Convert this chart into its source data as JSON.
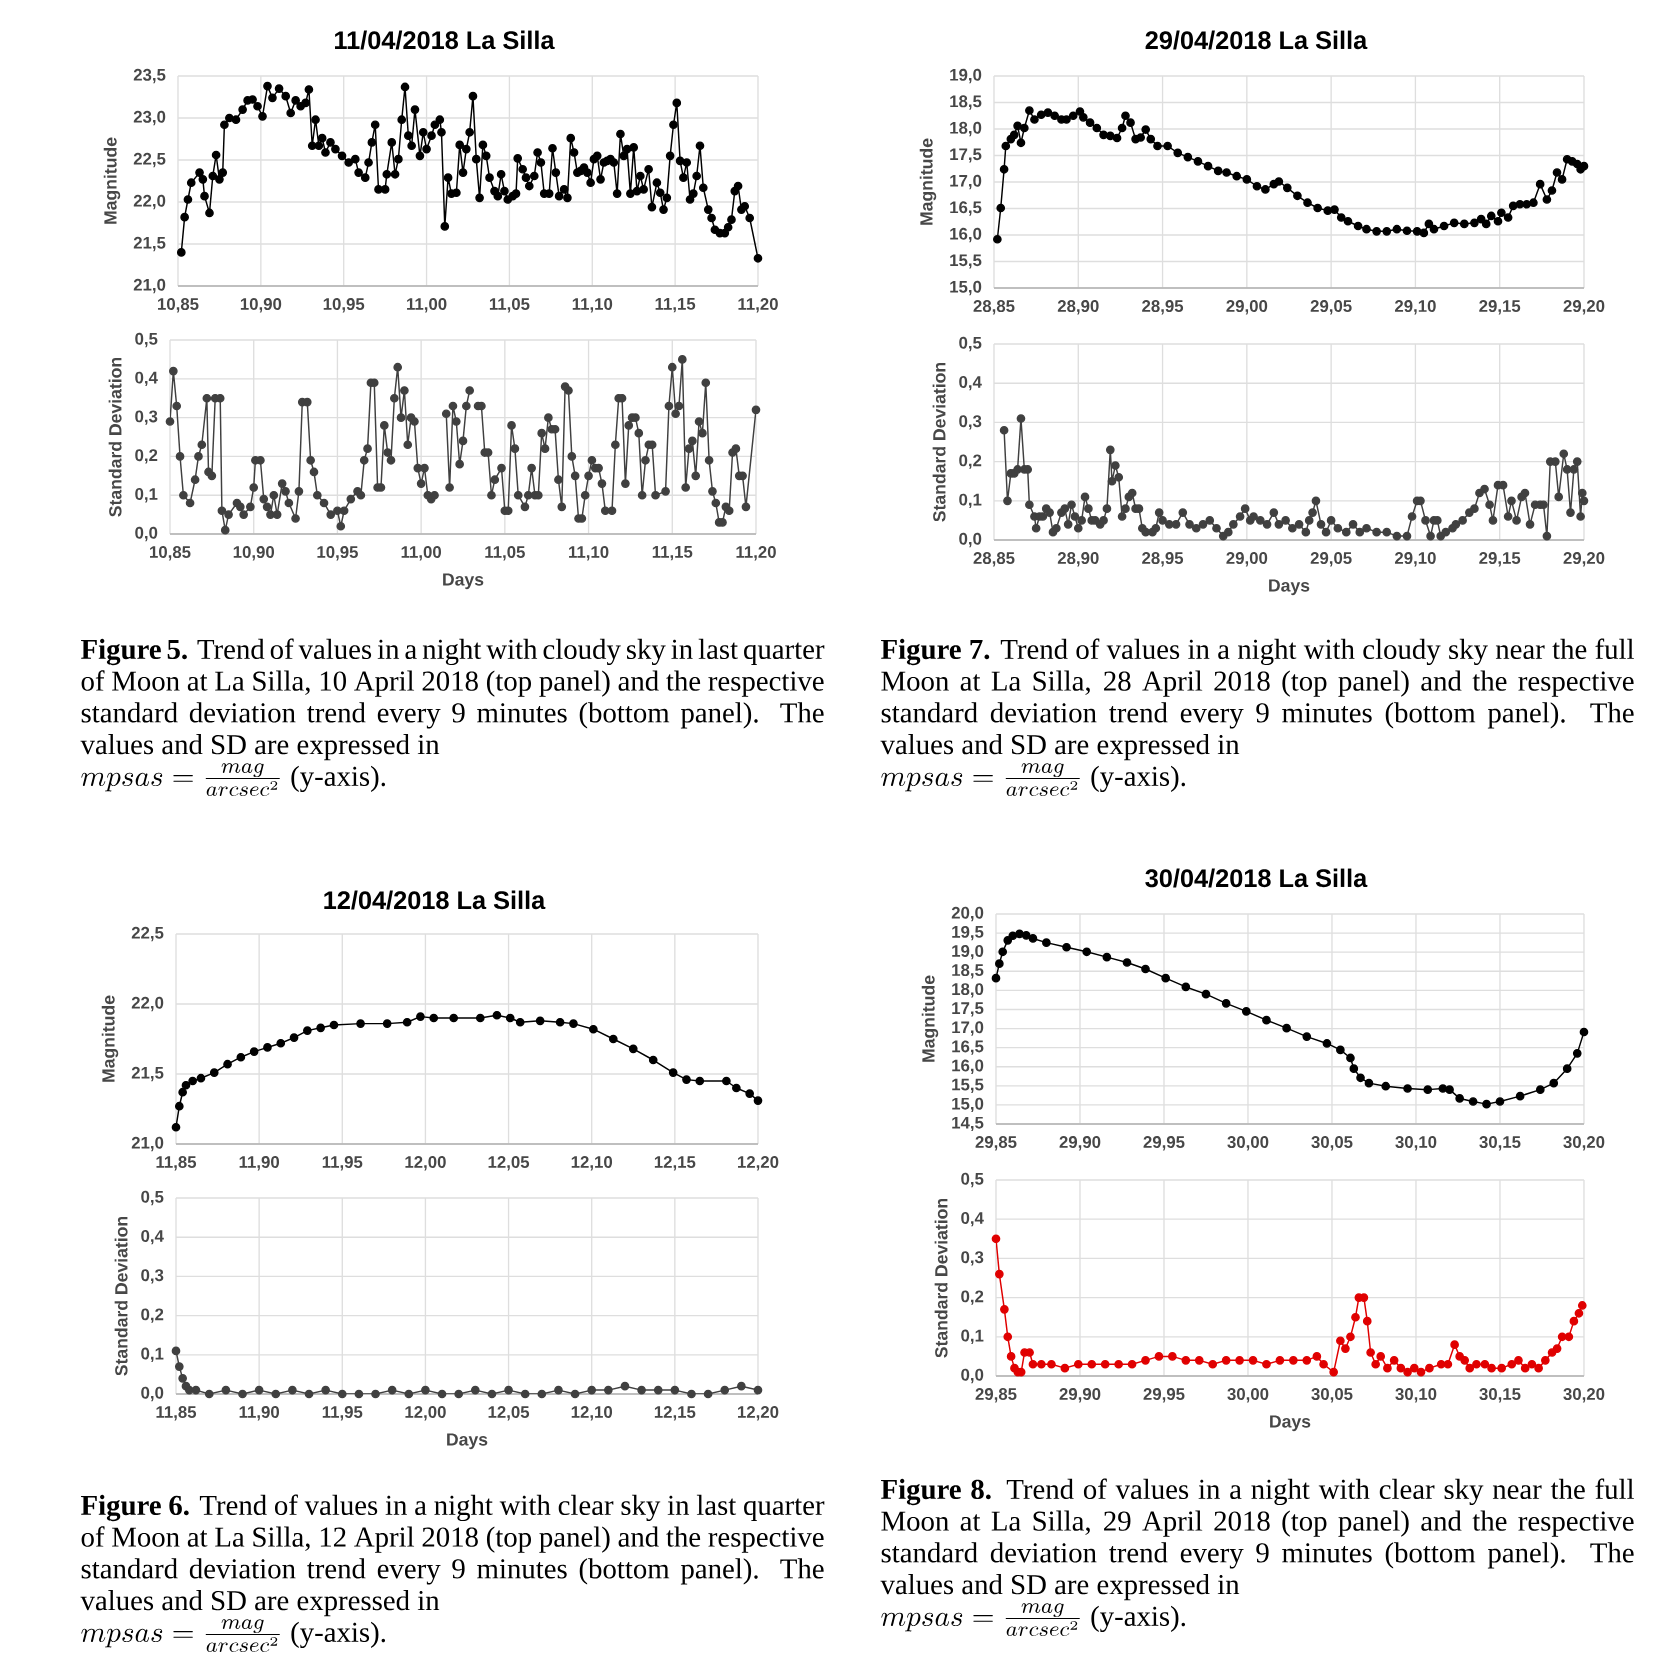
{
  "chart_data": [
    {
      "type": "line",
      "title": "11/04/2018 La Silla",
      "ylabel": "Magnitude",
      "color": "#000000",
      "marker": "circle",
      "grid": true,
      "xlim": [
        10.85,
        11.2
      ],
      "xticks": [
        {
          "value": 10.85,
          "label": "10,85"
        },
        {
          "value": 10.9,
          "label": "10,90"
        },
        {
          "value": 10.95,
          "label": "10,95"
        },
        {
          "value": 11.0,
          "label": "11,00"
        },
        {
          "value": 11.05,
          "label": "11,05"
        },
        {
          "value": 11.1,
          "label": "11,10"
        },
        {
          "value": 11.15,
          "label": "11,15"
        },
        {
          "value": 11.2,
          "label": "11,20"
        }
      ],
      "ylim": [
        21,
        23.5
      ],
      "yticks": [
        {
          "value": 21.0,
          "label": "21,0"
        },
        {
          "value": 21.5,
          "label": "21,5"
        },
        {
          "value": 22.0,
          "label": "22,0"
        },
        {
          "value": 22.5,
          "label": "22,5"
        },
        {
          "value": 23.0,
          "label": "23,0"
        },
        {
          "value": 23.5,
          "label": "23,5"
        }
      ],
      "x": [
        10.852,
        10.854,
        10.856,
        10.858,
        10.863,
        10.865,
        10.866,
        10.869,
        10.871,
        10.873,
        10.875,
        10.877,
        10.878,
        10.881,
        10.885,
        10.889,
        10.892,
        10.895,
        10.898,
        10.901,
        10.904,
        10.907,
        10.911,
        10.915,
        10.918,
        10.921,
        10.924,
        10.927,
        10.929,
        10.931,
        10.933,
        10.935,
        10.937,
        10.939,
        10.942,
        10.945,
        10.949,
        10.953,
        10.957,
        10.959,
        10.963,
        10.965,
        10.967,
        10.969,
        10.971,
        10.975,
        10.976,
        10.979,
        10.981,
        10.983,
        10.985,
        10.987,
        10.989,
        10.991,
        10.993,
        10.996,
        10.998,
        11.0,
        11.003,
        11.005,
        11.008,
        11.009,
        11.011,
        11.013,
        11.015,
        11.018,
        11.02,
        11.022,
        11.024,
        11.026,
        11.028,
        11.03,
        11.032,
        11.034,
        11.036,
        11.038,
        11.041,
        11.043,
        11.045,
        11.047,
        11.049,
        11.052,
        11.054,
        11.055,
        11.058,
        11.06,
        11.062,
        11.065,
        11.067,
        11.069,
        11.071,
        11.074,
        11.076,
        11.078,
        11.08,
        11.083,
        11.085,
        11.087,
        11.089,
        11.091,
        11.093,
        11.095,
        11.097,
        11.099,
        11.101,
        11.103,
        11.105,
        11.107,
        11.109,
        11.111,
        11.113,
        11.115,
        11.117,
        11.119,
        11.121,
        11.123,
        11.125,
        11.127,
        11.129,
        11.131,
        11.134,
        11.136,
        11.139,
        11.141,
        11.143,
        11.145,
        11.147,
        11.149,
        11.151,
        11.153,
        11.155,
        11.157,
        11.159,
        11.161,
        11.163,
        11.165,
        11.167,
        11.17,
        11.172,
        11.174,
        11.177,
        11.18,
        11.182,
        11.184,
        11.186,
        11.188,
        11.19,
        11.192,
        11.195,
        11.2
      ],
      "values": [
        21.4,
        21.82,
        22.03,
        22.23,
        22.35,
        22.27,
        22.07,
        21.87,
        22.31,
        22.56,
        22.27,
        22.35,
        22.92,
        23.0,
        22.98,
        23.1,
        23.21,
        23.22,
        23.14,
        23.02,
        23.38,
        23.24,
        23.35,
        23.26,
        23.06,
        23.21,
        23.14,
        23.18,
        23.34,
        22.67,
        22.98,
        22.67,
        22.76,
        22.59,
        22.71,
        22.63,
        22.55,
        22.47,
        22.51,
        22.35,
        22.29,
        22.47,
        22.71,
        22.92,
        22.15,
        22.15,
        22.33,
        22.71,
        22.33,
        22.51,
        22.98,
        23.37,
        22.79,
        22.67,
        23.1,
        22.55,
        22.83,
        22.63,
        22.79,
        22.92,
        22.98,
        22.83,
        21.71,
        22.29,
        22.1,
        22.11,
        22.68,
        22.35,
        22.63,
        22.83,
        23.26,
        22.51,
        22.05,
        22.68,
        22.55,
        22.29,
        22.13,
        22.07,
        22.33,
        22.13,
        22.03,
        22.07,
        22.1,
        22.52,
        22.39,
        22.29,
        22.19,
        22.31,
        22.59,
        22.47,
        22.1,
        22.1,
        22.64,
        22.35,
        22.07,
        22.15,
        22.05,
        22.76,
        22.59,
        22.35,
        22.37,
        22.41,
        22.35,
        22.23,
        22.51,
        22.55,
        22.27,
        22.47,
        22.49,
        22.51,
        22.47,
        22.1,
        22.81,
        22.55,
        22.63,
        22.1,
        22.65,
        22.13,
        22.31,
        22.15,
        22.39,
        21.94,
        22.23,
        22.11,
        21.91,
        22.05,
        22.55,
        22.92,
        23.18,
        22.49,
        22.29,
        22.47,
        22.03,
        22.1,
        22.31,
        22.67,
        22.17,
        21.91,
        21.81,
        21.67,
        21.63,
        21.63,
        21.7,
        21.79,
        22.13,
        22.19,
        21.91,
        21.95,
        21.81,
        21.33
      ]
    },
    {
      "type": "line",
      "xlabel": "Days",
      "ylabel": "Standard Deviation",
      "color": "#404040",
      "marker": "circle",
      "grid": true,
      "xlim": [
        10.85,
        11.2
      ],
      "xticks": [
        {
          "value": 10.85,
          "label": "10,85"
        },
        {
          "value": 10.9,
          "label": "10,90"
        },
        {
          "value": 10.95,
          "label": "10,95"
        },
        {
          "value": 11.0,
          "label": "11,00"
        },
        {
          "value": 11.05,
          "label": "11,05"
        },
        {
          "value": 11.1,
          "label": "11,10"
        },
        {
          "value": 11.15,
          "label": "11,15"
        },
        {
          "value": 11.2,
          "label": "11,20"
        }
      ],
      "ylim": [
        0,
        0.5
      ],
      "yticks": [
        {
          "value": 0.0,
          "label": "0,0"
        },
        {
          "value": 0.1,
          "label": "0,1"
        },
        {
          "value": 0.2,
          "label": "0,2"
        },
        {
          "value": 0.3,
          "label": "0,3"
        },
        {
          "value": 0.4,
          "label": "0,4"
        },
        {
          "value": 0.5,
          "label": "0,5"
        }
      ],
      "x": [
        10.85,
        10.852,
        10.854,
        10.856,
        10.858,
        10.862,
        10.865,
        10.867,
        10.869,
        10.872,
        10.873,
        10.875,
        10.877,
        10.88,
        10.881,
        10.883,
        10.885,
        10.89,
        10.892,
        10.894,
        10.898,
        10.9,
        10.901,
        10.904,
        10.906,
        10.908,
        10.91,
        10.912,
        10.914,
        10.917,
        10.919,
        10.921,
        10.925,
        10.927,
        10.929,
        10.932,
        10.934,
        10.936,
        10.938,
        10.942,
        10.946,
        10.95,
        10.952,
        10.954,
        10.958,
        10.962,
        10.964,
        10.966,
        10.968,
        10.97,
        10.972,
        10.974,
        10.976,
        10.978,
        10.98,
        10.982,
        10.984,
        10.986,
        10.988,
        10.99,
        10.992,
        10.994,
        10.996,
        10.998,
        11.0,
        11.002,
        11.004,
        11.006,
        11.008,
        11.011,
        11.015,
        11.017,
        11.019,
        11.021,
        11.023,
        11.025,
        11.027,
        11.029,
        11.031,
        11.034,
        11.036,
        11.038,
        11.04,
        11.042,
        11.044,
        11.048,
        11.05,
        11.052,
        11.054,
        11.056,
        11.058,
        11.062,
        11.064,
        11.066,
        11.068,
        11.07,
        11.072,
        11.074,
        11.076,
        11.078,
        11.08,
        11.082,
        11.084,
        11.086,
        11.088,
        11.09,
        11.092,
        11.094,
        11.096,
        11.098,
        11.1,
        11.102,
        11.104,
        11.106,
        11.108,
        11.11,
        11.114,
        11.116,
        11.118,
        11.12,
        11.122,
        11.124,
        11.126,
        11.128,
        11.13,
        11.132,
        11.134,
        11.136,
        11.138,
        11.14,
        11.146,
        11.148,
        11.15,
        11.152,
        11.154,
        11.156,
        11.158,
        11.16,
        11.162,
        11.164,
        11.166,
        11.168,
        11.17,
        11.172,
        11.174,
        11.176,
        11.178,
        11.18,
        11.182,
        11.184,
        11.186,
        11.188,
        11.19,
        11.192,
        11.194,
        11.2
      ],
      "values": [
        0.29,
        0.42,
        0.33,
        0.2,
        0.1,
        0.08,
        0.14,
        0.2,
        0.23,
        0.35,
        0.16,
        0.15,
        0.35,
        0.35,
        0.06,
        0.01,
        0.05,
        0.08,
        0.07,
        0.05,
        0.07,
        0.12,
        0.19,
        0.19,
        0.09,
        0.07,
        0.05,
        0.1,
        0.05,
        0.13,
        0.11,
        0.08,
        0.04,
        0.11,
        0.34,
        0.34,
        0.19,
        0.16,
        0.1,
        0.08,
        0.05,
        0.06,
        0.02,
        0.06,
        0.09,
        0.11,
        0.1,
        0.19,
        0.22,
        0.39,
        0.39,
        0.12,
        0.12,
        0.28,
        0.21,
        0.19,
        0.35,
        0.43,
        0.3,
        0.37,
        0.23,
        0.3,
        0.29,
        0.17,
        0.13,
        0.17,
        0.1,
        0.09,
        0.1,
        null,
        0.31,
        0.12,
        0.33,
        0.29,
        0.18,
        0.24,
        0.33,
        0.37,
        null,
        0.33,
        0.33,
        0.21,
        0.21,
        0.1,
        0.14,
        0.17,
        0.06,
        0.06,
        0.28,
        0.22,
        0.1,
        0.07,
        0.1,
        0.17,
        0.1,
        0.1,
        0.26,
        0.22,
        0.3,
        0.27,
        0.27,
        0.14,
        0.07,
        0.38,
        0.37,
        0.2,
        0.15,
        0.04,
        0.04,
        0.1,
        0.15,
        0.19,
        0.17,
        0.17,
        0.13,
        0.06,
        0.06,
        0.23,
        0.35,
        0.35,
        0.13,
        0.28,
        0.3,
        0.3,
        0.26,
        0.1,
        0.19,
        0.23,
        0.23,
        0.1,
        0.11,
        0.33,
        0.43,
        0.31,
        0.33,
        0.45,
        0.12,
        0.22,
        0.24,
        0.15,
        0.29,
        0.26,
        0.39,
        0.19,
        0.11,
        0.08,
        0.03,
        0.03,
        0.07,
        0.06,
        0.21,
        0.22,
        0.15,
        0.15,
        0.07,
        0.32
      ],
      "annotations": [
        "**Figure 5.** Trend of values in a night with cloudy sky in last quarter of Moon at La Silla, 10 April 2018 (top panel) and the respective standard deviation trend every 9 minutes (bottom panel). The values and SD are expressed in",
        "mpsas = \\frac{mag}{arcsec^2}",
        "(y-axis)."
      ]
    },
    {
      "type": "line",
      "title": "12/04/2018 La Silla",
      "ylabel": "Magnitude",
      "color": "#000000",
      "marker": "circle",
      "grid": true,
      "xlim": [
        11.85,
        12.2
      ],
      "xticks": [
        {
          "value": 11.85,
          "label": "11,85"
        },
        {
          "value": 11.9,
          "label": "11,90"
        },
        {
          "value": 11.95,
          "label": "11,95"
        },
        {
          "value": 12.0,
          "label": "12,00"
        },
        {
          "value": 12.05,
          "label": "12,05"
        },
        {
          "value": 12.1,
          "label": "12,10"
        },
        {
          "value": 12.15,
          "label": "12,15"
        },
        {
          "value": 12.2,
          "label": "12,20"
        }
      ],
      "ylim": [
        21,
        22.5
      ],
      "yticks": [
        {
          "value": 21.0,
          "label": "21,0"
        },
        {
          "value": 21.5,
          "label": "21,5"
        },
        {
          "value": 22.0,
          "label": "22,0"
        },
        {
          "value": 22.5,
          "label": "22,5"
        }
      ],
      "x": [
        11.85,
        11.852,
        11.854,
        11.856,
        11.86,
        11.865,
        11.873,
        11.881,
        11.889,
        11.897,
        11.905,
        11.913,
        11.921,
        11.929,
        11.937,
        11.945,
        11.961,
        11.977,
        11.989,
        11.997,
        12.005,
        12.017,
        12.033,
        12.043,
        12.051,
        12.057,
        12.069,
        12.081,
        12.089,
        12.101,
        12.113,
        12.125,
        12.137,
        12.149,
        12.157,
        12.165,
        12.181,
        12.187,
        12.195,
        12.2
      ],
      "values": [
        21.12,
        21.27,
        21.37,
        21.42,
        21.45,
        21.47,
        21.51,
        21.57,
        21.62,
        21.66,
        21.69,
        21.72,
        21.76,
        21.81,
        21.83,
        21.85,
        21.86,
        21.86,
        21.87,
        21.91,
        21.9,
        21.9,
        21.9,
        21.92,
        21.9,
        21.87,
        21.88,
        21.87,
        21.86,
        21.82,
        21.75,
        21.68,
        21.6,
        21.51,
        21.46,
        21.45,
        21.45,
        21.4,
        21.36,
        21.31
      ]
    },
    {
      "type": "line",
      "xlabel": "Days",
      "ylabel": "Standard Deviation",
      "color": "#404040",
      "marker": "circle",
      "grid": true,
      "xlim": [
        11.85,
        12.2
      ],
      "xticks": [
        {
          "value": 11.85,
          "label": "11,85"
        },
        {
          "value": 11.9,
          "label": "11,90"
        },
        {
          "value": 11.95,
          "label": "11,95"
        },
        {
          "value": 12.0,
          "label": "12,00"
        },
        {
          "value": 12.05,
          "label": "12,05"
        },
        {
          "value": 12.1,
          "label": "12,10"
        },
        {
          "value": 12.15,
          "label": "12,15"
        },
        {
          "value": 12.2,
          "label": "12,20"
        }
      ],
      "ylim": [
        0,
        0.5
      ],
      "yticks": [
        {
          "value": 0.0,
          "label": "0,0"
        },
        {
          "value": 0.1,
          "label": "0,1"
        },
        {
          "value": 0.2,
          "label": "0,2"
        },
        {
          "value": 0.3,
          "label": "0,3"
        },
        {
          "value": 0.4,
          "label": "0,4"
        },
        {
          "value": 0.5,
          "label": "0,5"
        }
      ],
      "x": [
        11.85,
        11.852,
        11.854,
        11.856,
        11.858,
        11.862,
        11.87,
        11.88,
        11.89,
        11.9,
        11.91,
        11.92,
        11.93,
        11.94,
        11.95,
        11.96,
        11.97,
        11.98,
        11.99,
        12.0,
        12.01,
        12.02,
        12.03,
        12.04,
        12.05,
        12.06,
        12.07,
        12.08,
        12.09,
        12.1,
        12.11,
        12.12,
        12.13,
        12.14,
        12.15,
        12.16,
        12.17,
        12.18,
        12.19,
        12.2
      ],
      "values": [
        0.11,
        0.07,
        0.04,
        0.02,
        0.01,
        0.01,
        0.0,
        0.01,
        0.0,
        0.01,
        0.0,
        0.01,
        0.0,
        0.01,
        0.0,
        0.0,
        0.0,
        0.01,
        0.0,
        0.01,
        0.0,
        0.0,
        0.01,
        0.0,
        0.01,
        0.0,
        0.0,
        0.01,
        0.0,
        0.01,
        0.01,
        0.02,
        0.01,
        0.01,
        0.01,
        0.0,
        0.0,
        0.01,
        0.02,
        0.01
      ],
      "annotations": [
        "**Figure 6.** Trend of values in a night with clear sky in last quarter of Moon at La Silla, 12 April 2018 (top panel) and the respective standard deviation trend every 9 minutes (bottom panel). The values and SD are expressed in",
        "mpsas = \\frac{mag}{arcsec^2}",
        "(y-axis)."
      ]
    },
    {
      "type": "line",
      "title": "29/04/2018 La Silla",
      "ylabel": "Magnitude",
      "color": "#000000",
      "marker": "circle",
      "grid": true,
      "xlim": [
        28.85,
        29.2
      ],
      "xticks": [
        {
          "value": 28.85,
          "label": "28,85"
        },
        {
          "value": 28.9,
          "label": "28,90"
        },
        {
          "value": 28.95,
          "label": "28,95"
        },
        {
          "value": 29.0,
          "label": "29,00"
        },
        {
          "value": 29.05,
          "label": "29,05"
        },
        {
          "value": 29.1,
          "label": "29,10"
        },
        {
          "value": 29.15,
          "label": "29,15"
        },
        {
          "value": 29.2,
          "label": "29,20"
        }
      ],
      "ylim": [
        15,
        19
      ],
      "yticks": [
        {
          "value": 15.0,
          "label": "15,0"
        },
        {
          "value": 15.5,
          "label": "15,5"
        },
        {
          "value": 16.0,
          "label": "16,0"
        },
        {
          "value": 16.5,
          "label": "16,5"
        },
        {
          "value": 17.0,
          "label": "17,0"
        },
        {
          "value": 17.5,
          "label": "17,5"
        },
        {
          "value": 18.0,
          "label": "18,0"
        },
        {
          "value": 18.5,
          "label": "18,5"
        },
        {
          "value": 19.0,
          "label": "19,0"
        }
      ],
      "x": [
        28.852,
        28.854,
        28.856,
        28.857,
        28.86,
        28.862,
        28.864,
        28.866,
        28.868,
        28.871,
        28.874,
        28.878,
        28.882,
        28.886,
        28.89,
        28.893,
        28.897,
        28.901,
        28.903,
        28.907,
        28.911,
        28.915,
        28.919,
        28.923,
        28.926,
        28.928,
        28.931,
        28.934,
        28.937,
        28.94,
        28.943,
        28.947,
        28.953,
        28.959,
        28.965,
        28.971,
        28.977,
        28.983,
        28.988,
        28.994,
        29.0,
        29.006,
        29.011,
        29.016,
        29.019,
        29.024,
        29.03,
        29.036,
        29.042,
        29.048,
        29.052,
        29.056,
        29.06,
        29.066,
        29.071,
        29.077,
        29.083,
        29.089,
        29.095,
        29.101,
        29.105,
        29.108,
        29.111,
        29.117,
        29.123,
        29.129,
        29.135,
        29.139,
        29.142,
        29.145,
        29.149,
        29.151,
        29.155,
        29.158,
        29.162,
        29.166,
        29.17,
        29.174,
        29.178,
        29.181,
        29.184,
        29.187,
        29.19,
        29.193,
        29.196,
        29.198,
        29.2
      ],
      "values": [
        15.92,
        16.51,
        17.24,
        17.68,
        17.81,
        17.89,
        18.06,
        17.74,
        18.02,
        18.35,
        18.18,
        18.27,
        18.31,
        18.25,
        18.18,
        18.18,
        18.25,
        18.33,
        18.22,
        18.12,
        18.02,
        17.89,
        17.87,
        17.83,
        18.02,
        18.25,
        18.12,
        17.81,
        17.84,
        17.99,
        17.81,
        17.68,
        17.68,
        17.55,
        17.47,
        17.39,
        17.3,
        17.21,
        17.18,
        17.11,
        17.05,
        16.92,
        16.86,
        16.96,
        17.01,
        16.89,
        16.74,
        16.61,
        16.51,
        16.46,
        16.48,
        16.33,
        16.26,
        16.17,
        16.11,
        16.07,
        16.07,
        16.11,
        16.08,
        16.07,
        16.04,
        16.21,
        16.11,
        16.17,
        16.23,
        16.21,
        16.23,
        16.3,
        16.21,
        16.36,
        16.26,
        16.42,
        16.33,
        16.55,
        16.58,
        16.58,
        16.61,
        16.96,
        16.67,
        16.84,
        17.18,
        17.05,
        17.43,
        17.39,
        17.34,
        17.24,
        17.3
      ]
    },
    {
      "type": "line",
      "xlabel": "Days",
      "ylabel": "Standard Deviation",
      "color": "#404040",
      "marker": "circle",
      "grid": true,
      "xlim": [
        28.85,
        29.2
      ],
      "xticks": [
        {
          "value": 28.85,
          "label": "28,85"
        },
        {
          "value": 28.9,
          "label": "28,90"
        },
        {
          "value": 28.95,
          "label": "28,95"
        },
        {
          "value": 29.0,
          "label": "29,00"
        },
        {
          "value": 29.05,
          "label": "29,05"
        },
        {
          "value": 29.1,
          "label": "29,10"
        },
        {
          "value": 29.15,
          "label": "29,15"
        },
        {
          "value": 29.2,
          "label": "29,20"
        }
      ],
      "ylim": [
        0,
        0.5
      ],
      "yticks": [
        {
          "value": 0.0,
          "label": "0,0"
        },
        {
          "value": 0.1,
          "label": "0,1"
        },
        {
          "value": 0.2,
          "label": "0,2"
        },
        {
          "value": 0.3,
          "label": "0,3"
        },
        {
          "value": 0.4,
          "label": "0,4"
        },
        {
          "value": 0.5,
          "label": "0,5"
        }
      ],
      "x": [
        28.856,
        28.858,
        28.86,
        28.862,
        28.864,
        28.866,
        28.868,
        28.87,
        28.871,
        28.874,
        28.875,
        28.877,
        28.879,
        28.881,
        28.883,
        28.885,
        28.887,
        28.89,
        28.892,
        28.894,
        28.896,
        28.898,
        28.9,
        28.902,
        28.904,
        28.906,
        28.908,
        28.91,
        28.913,
        28.915,
        28.917,
        28.919,
        28.92,
        28.922,
        28.924,
        28.926,
        28.928,
        28.93,
        28.932,
        28.934,
        28.936,
        28.938,
        28.94,
        28.944,
        28.946,
        28.948,
        28.95,
        28.954,
        28.958,
        28.962,
        28.966,
        28.97,
        28.974,
        28.978,
        28.982,
        28.986,
        28.989,
        28.992,
        28.996,
        28.999,
        29.002,
        29.004,
        29.008,
        29.012,
        29.016,
        29.019,
        29.023,
        29.027,
        29.031,
        29.035,
        29.037,
        29.039,
        29.041,
        29.044,
        29.047,
        29.05,
        29.054,
        29.059,
        29.063,
        29.067,
        29.071,
        29.077,
        29.083,
        29.089,
        29.095,
        29.098,
        29.101,
        29.103,
        29.106,
        29.109,
        29.111,
        29.113,
        29.115,
        29.118,
        29.122,
        29.124,
        29.128,
        29.132,
        29.135,
        29.138,
        29.141,
        29.144,
        29.146,
        29.149,
        29.152,
        29.155,
        29.157,
        29.16,
        29.163,
        29.165,
        29.168,
        29.171,
        29.174,
        29.176,
        29.178,
        29.18,
        29.183,
        29.185,
        29.188,
        29.19,
        29.192,
        29.194,
        29.196,
        29.198,
        29.199,
        29.2
      ],
      "values": [
        0.28,
        0.1,
        0.17,
        0.17,
        0.18,
        0.31,
        0.18,
        0.18,
        0.09,
        0.06,
        0.03,
        0.06,
        0.06,
        0.08,
        0.07,
        0.02,
        0.03,
        0.07,
        0.08,
        0.04,
        0.09,
        0.06,
        0.03,
        0.05,
        0.11,
        0.08,
        0.05,
        0.05,
        0.04,
        0.05,
        0.08,
        0.23,
        0.15,
        0.19,
        0.16,
        0.06,
        0.08,
        0.11,
        0.12,
        0.08,
        0.08,
        0.03,
        0.02,
        0.02,
        0.03,
        0.07,
        0.05,
        0.04,
        0.04,
        0.07,
        0.04,
        0.03,
        0.04,
        0.05,
        0.03,
        0.01,
        0.02,
        0.04,
        0.06,
        0.08,
        0.05,
        0.06,
        0.05,
        0.04,
        0.07,
        0.04,
        0.05,
        0.03,
        0.04,
        0.02,
        0.05,
        0.07,
        0.1,
        0.04,
        0.02,
        0.05,
        0.03,
        0.02,
        0.04,
        0.02,
        0.03,
        0.02,
        0.02,
        0.01,
        0.01,
        0.06,
        0.1,
        0.1,
        0.05,
        0.01,
        0.05,
        0.05,
        0.01,
        0.02,
        0.03,
        0.04,
        0.05,
        0.07,
        0.08,
        0.12,
        0.13,
        0.09,
        0.05,
        0.14,
        0.14,
        0.06,
        0.1,
        0.05,
        0.11,
        0.12,
        0.04,
        0.09,
        0.09,
        0.09,
        0.01,
        0.2,
        0.2,
        0.11,
        0.22,
        0.18,
        0.07,
        0.18,
        0.2,
        0.06,
        0.12,
        0.1
      ],
      "annotations": [
        "**Figure 7.** Trend of values in a night with cloudy sky near the full Moon at La Silla, 28 April 2018 (top panel) and the respective standard deviation trend every 9 minutes (bottom panel). The values and SD are expressed in",
        "mpsas = \\frac{mag}{arcsec^2}",
        "(y-axis)."
      ]
    },
    {
      "type": "line",
      "title": "30/04/2018 La Silla",
      "ylabel": "Magnitude",
      "color": "#000000",
      "marker": "circle",
      "grid": true,
      "xlim": [
        29.85,
        30.2
      ],
      "xticks": [
        {
          "value": 29.85,
          "label": "29,85"
        },
        {
          "value": 29.9,
          "label": "29,90"
        },
        {
          "value": 29.95,
          "label": "29,95"
        },
        {
          "value": 30.0,
          "label": "30,00"
        },
        {
          "value": 30.05,
          "label": "30,05"
        },
        {
          "value": 30.1,
          "label": "30,10"
        },
        {
          "value": 30.15,
          "label": "30,15"
        },
        {
          "value": 30.2,
          "label": "30,20"
        }
      ],
      "ylim": [
        14.5,
        20
      ],
      "yticks": [
        {
          "value": 14.5,
          "label": "14,5"
        },
        {
          "value": 15.0,
          "label": "15,0"
        },
        {
          "value": 15.5,
          "label": "15,5"
        },
        {
          "value": 16.0,
          "label": "16,0"
        },
        {
          "value": 16.5,
          "label": "16,5"
        },
        {
          "value": 17.0,
          "label": "17,0"
        },
        {
          "value": 17.5,
          "label": "17,5"
        },
        {
          "value": 18.0,
          "label": "18,0"
        },
        {
          "value": 18.5,
          "label": "18,5"
        },
        {
          "value": 19.0,
          "label": "19,0"
        },
        {
          "value": 19.5,
          "label": "19,5"
        },
        {
          "value": 20.0,
          "label": "20,0"
        }
      ],
      "x": [
        29.85,
        29.852,
        29.854,
        29.857,
        29.86,
        29.864,
        29.868,
        29.872,
        29.88,
        29.892,
        29.904,
        29.916,
        29.928,
        29.939,
        29.951,
        29.963,
        29.975,
        29.987,
        29.999,
        30.011,
        30.023,
        30.035,
        30.047,
        30.055,
        30.061,
        30.063,
        30.067,
        30.072,
        30.082,
        30.095,
        30.107,
        30.116,
        30.12,
        30.126,
        30.134,
        30.142,
        30.15,
        30.162,
        30.174,
        30.182,
        30.19,
        30.196,
        30.2
      ],
      "values": [
        18.32,
        18.7,
        19.01,
        19.31,
        19.43,
        19.48,
        19.44,
        19.36,
        19.25,
        19.13,
        19.01,
        18.87,
        18.73,
        18.56,
        18.32,
        18.09,
        17.9,
        17.66,
        17.45,
        17.22,
        17.01,
        16.79,
        16.61,
        16.44,
        16.23,
        15.95,
        15.71,
        15.57,
        15.49,
        15.43,
        15.4,
        15.43,
        15.4,
        15.17,
        15.09,
        15.02,
        15.09,
        15.23,
        15.4,
        15.57,
        15.95,
        16.35,
        16.91
      ]
    },
    {
      "type": "line",
      "xlabel": "Days",
      "ylabel": "Standard Deviation",
      "color": "#e00000",
      "marker": "circle",
      "grid": true,
      "xlim": [
        29.85,
        30.2
      ],
      "xticks": [
        {
          "value": 29.85,
          "label": "29,85"
        },
        {
          "value": 29.9,
          "label": "29,90"
        },
        {
          "value": 29.95,
          "label": "29,95"
        },
        {
          "value": 30.0,
          "label": "30,00"
        },
        {
          "value": 30.05,
          "label": "30,05"
        },
        {
          "value": 30.1,
          "label": "30,10"
        },
        {
          "value": 30.15,
          "label": "30,15"
        },
        {
          "value": 30.2,
          "label": "30,20"
        }
      ],
      "ylim": [
        0,
        0.5
      ],
      "yticks": [
        {
          "value": 0.0,
          "label": "0,0"
        },
        {
          "value": 0.1,
          "label": "0,1"
        },
        {
          "value": 0.2,
          "label": "0,2"
        },
        {
          "value": 0.3,
          "label": "0,3"
        },
        {
          "value": 0.4,
          "label": "0,4"
        },
        {
          "value": 0.5,
          "label": "0,5"
        }
      ],
      "x": [
        29.85,
        29.852,
        29.855,
        29.857,
        29.859,
        29.861,
        29.863,
        29.865,
        29.867,
        29.87,
        29.872,
        29.877,
        29.883,
        29.891,
        29.899,
        29.907,
        29.915,
        29.923,
        29.931,
        29.939,
        29.947,
        29.955,
        29.963,
        29.971,
        29.979,
        29.987,
        29.995,
        30.003,
        30.011,
        30.019,
        30.027,
        30.035,
        30.041,
        30.045,
        30.051,
        30.055,
        30.058,
        30.061,
        30.064,
        30.066,
        30.069,
        30.071,
        30.073,
        30.076,
        30.079,
        30.083,
        30.087,
        30.091,
        30.095,
        30.099,
        30.103,
        30.108,
        30.115,
        30.119,
        30.123,
        30.126,
        30.129,
        30.132,
        30.136,
        30.141,
        30.145,
        30.151,
        30.157,
        30.161,
        30.165,
        30.169,
        30.173,
        30.177,
        30.181,
        30.184,
        30.187,
        30.191,
        30.194,
        30.197,
        30.199
      ],
      "values": [
        0.35,
        0.26,
        0.17,
        0.1,
        0.05,
        0.02,
        0.01,
        0.01,
        0.06,
        0.06,
        0.03,
        0.03,
        0.03,
        0.02,
        0.03,
        0.03,
        0.03,
        0.03,
        0.03,
        0.04,
        0.05,
        0.05,
        0.04,
        0.04,
        0.03,
        0.04,
        0.04,
        0.04,
        0.03,
        0.04,
        0.04,
        0.04,
        0.05,
        0.03,
        0.01,
        0.09,
        0.07,
        0.1,
        0.15,
        0.2,
        0.2,
        0.14,
        0.06,
        0.03,
        0.05,
        0.02,
        0.04,
        0.02,
        0.01,
        0.02,
        0.01,
        0.02,
        0.03,
        0.03,
        0.08,
        0.05,
        0.04,
        0.02,
        0.03,
        0.03,
        0.02,
        0.02,
        0.03,
        0.04,
        0.02,
        0.03,
        0.02,
        0.04,
        0.06,
        0.07,
        0.1,
        0.1,
        0.14,
        0.16,
        0.18
      ],
      "annotations": [
        "**Figure 8.** Trend of values in a night with clear sky near the full Moon at La Silla, 29 April 2018 (top panel) and the respective standard deviation trend every 9 minutes (bottom panel). The values and SD are expressed in",
        "mpsas = \\frac{mag}{arcsec^2}",
        "(y-axis)."
      ]
    }
  ]
}
